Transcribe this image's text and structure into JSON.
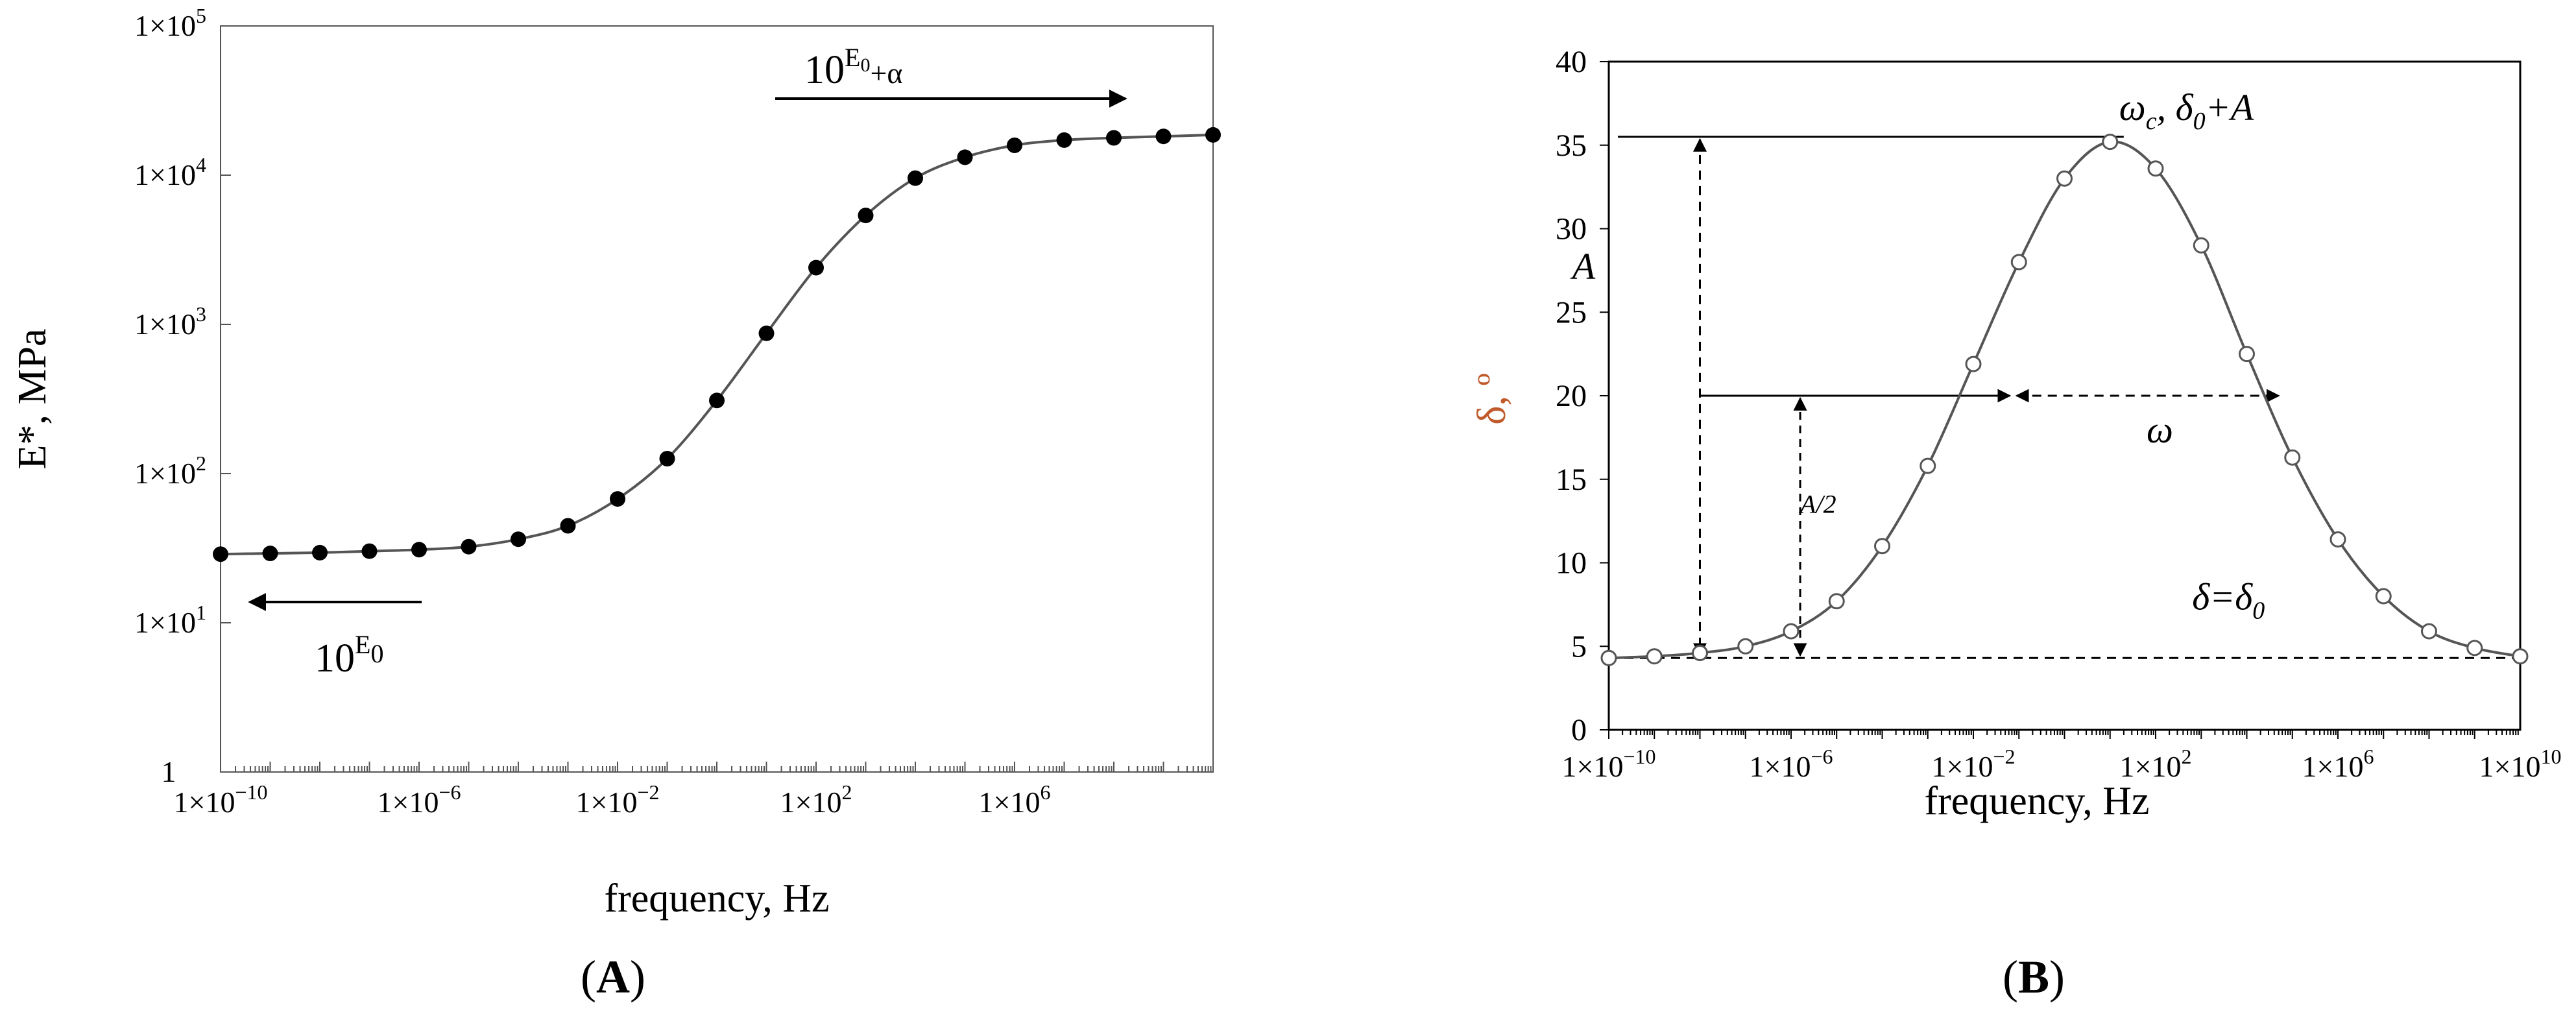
{
  "chart_data": [
    {
      "panel_label": "A",
      "type": "scatter",
      "title": "",
      "xlabel": "frequency, Hz",
      "ylabel": "E*, MPa",
      "xscale": "log",
      "yscale": "log",
      "xlim": [
        -10,
        10
      ],
      "ylim": [
        0,
        5
      ],
      "x_ticks": [
        -10,
        -6,
        -2,
        2,
        6
      ],
      "y_ticks": [
        0,
        1,
        2,
        3,
        4,
        5
      ],
      "grid": false,
      "line_color": "#555555",
      "marker": "filled-circle",
      "series": [
        {
          "log10_frequency": [
            -10,
            -9,
            -8,
            -7,
            -6,
            -5,
            -4,
            -3,
            -2,
            -1,
            0,
            1,
            2,
            3,
            4,
            5,
            6,
            7,
            8,
            9,
            10
          ],
          "log10_Estar": [
            1.46,
            1.465,
            1.47,
            1.48,
            1.49,
            1.51,
            1.56,
            1.65,
            1.83,
            2.1,
            2.49,
            2.94,
            3.38,
            3.73,
            3.98,
            4.12,
            4.2,
            4.235,
            4.25,
            4.26,
            4.27
          ]
        }
      ],
      "annotations": [
        {
          "label_base": "10",
          "label_sup": "E",
          "label_sub": "0",
          "arrow": "left",
          "position": "lower-left"
        },
        {
          "label_base": "10",
          "label_sup": "E",
          "label_sub": "0",
          "label_suffix": "+α",
          "arrow": "right",
          "position": "upper-right"
        }
      ]
    },
    {
      "panel_label": "B",
      "type": "line",
      "title": "",
      "xlabel": "frequency, Hz",
      "ylabel": "δ, º",
      "xscale": "log",
      "xlim": [
        -10,
        10
      ],
      "ylim": [
        0,
        40
      ],
      "x_ticks": [
        -10,
        -6,
        -2,
        2,
        6,
        10
      ],
      "y_ticks": [
        0,
        5,
        10,
        15,
        20,
        25,
        30,
        35,
        40
      ],
      "grid": false,
      "line_color": "#555555",
      "marker": "open-circle",
      "series": [
        {
          "log10_frequency": [
            -10,
            -9,
            -8,
            -7,
            -6,
            -5,
            -4,
            -3,
            -2,
            -1,
            0,
            1,
            2,
            3,
            4,
            5,
            6,
            7,
            8,
            9,
            10
          ],
          "delta_deg": [
            4.3,
            4.4,
            4.6,
            5.0,
            5.9,
            7.7,
            11.0,
            15.8,
            21.9,
            28.0,
            33.0,
            35.2,
            33.6,
            29.0,
            22.5,
            16.3,
            11.4,
            8.0,
            5.9,
            4.9,
            4.4
          ]
        }
      ],
      "annotations": [
        {
          "text": "ω",
          "sub": "c",
          "text2": ", δ",
          "sub2": "0",
          "text3": "+A",
          "x": 1.2,
          "y": 36.5
        },
        {
          "text": "A",
          "x": -10.8,
          "y": 27
        },
        {
          "text": "A/2",
          "x": -5.8,
          "y": 13
        },
        {
          "text": "ω",
          "x": 1.8,
          "y": 17.2
        },
        {
          "text": "δ=δ",
          "sub": "0",
          "x": 2.8,
          "y": 7.2
        }
      ],
      "reference_lines": {
        "baseline": 4.3,
        "peak": 35.5,
        "half": 20,
        "half_x_left": -1.2,
        "half_x_right": 4.7,
        "peak_x": 1.3
      }
    }
  ]
}
